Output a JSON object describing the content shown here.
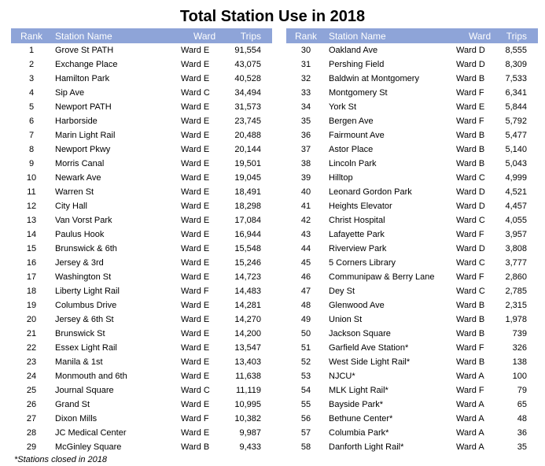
{
  "title": "Total Station Use in 2018",
  "headers": {
    "rank": "Rank",
    "name": "Station Name",
    "ward": "Ward",
    "trips": "Trips"
  },
  "left_rows": [
    {
      "rank": "1",
      "name": "Grove St PATH",
      "ward": "Ward E",
      "trips": "91,554"
    },
    {
      "rank": "2",
      "name": "Exchange Place",
      "ward": "Ward E",
      "trips": "43,075"
    },
    {
      "rank": "3",
      "name": "Hamilton Park",
      "ward": "Ward E",
      "trips": "40,528"
    },
    {
      "rank": "4",
      "name": "Sip Ave",
      "ward": "Ward C",
      "trips": "34,494"
    },
    {
      "rank": "5",
      "name": "Newport PATH",
      "ward": "Ward E",
      "trips": "31,573"
    },
    {
      "rank": "6",
      "name": "Harborside",
      "ward": "Ward E",
      "trips": "23,745"
    },
    {
      "rank": "7",
      "name": "Marin Light Rail",
      "ward": "Ward E",
      "trips": "20,488"
    },
    {
      "rank": "8",
      "name": "Newport Pkwy",
      "ward": "Ward E",
      "trips": "20,144"
    },
    {
      "rank": "9",
      "name": "Morris Canal",
      "ward": "Ward E",
      "trips": "19,501"
    },
    {
      "rank": "10",
      "name": "Newark Ave",
      "ward": "Ward E",
      "trips": "19,045"
    },
    {
      "rank": "11",
      "name": "Warren St",
      "ward": "Ward E",
      "trips": "18,491"
    },
    {
      "rank": "12",
      "name": "City Hall",
      "ward": "Ward E",
      "trips": "18,298"
    },
    {
      "rank": "13",
      "name": "Van Vorst Park",
      "ward": "Ward E",
      "trips": "17,084"
    },
    {
      "rank": "14",
      "name": "Paulus Hook",
      "ward": "Ward E",
      "trips": "16,944"
    },
    {
      "rank": "15",
      "name": "Brunswick & 6th",
      "ward": "Ward E",
      "trips": "15,548"
    },
    {
      "rank": "16",
      "name": "Jersey & 3rd",
      "ward": "Ward E",
      "trips": "15,246"
    },
    {
      "rank": "17",
      "name": "Washington St",
      "ward": "Ward E",
      "trips": "14,723"
    },
    {
      "rank": "18",
      "name": "Liberty Light Rail",
      "ward": "Ward F",
      "trips": "14,483"
    },
    {
      "rank": "19",
      "name": "Columbus Drive",
      "ward": "Ward E",
      "trips": "14,281"
    },
    {
      "rank": "20",
      "name": "Jersey & 6th St",
      "ward": "Ward E",
      "trips": "14,270"
    },
    {
      "rank": "21",
      "name": "Brunswick St",
      "ward": "Ward E",
      "trips": "14,200"
    },
    {
      "rank": "22",
      "name": "Essex Light Rail",
      "ward": "Ward E",
      "trips": "13,547"
    },
    {
      "rank": "23",
      "name": "Manila & 1st",
      "ward": "Ward E",
      "trips": "13,403"
    },
    {
      "rank": "24",
      "name": "Monmouth and 6th",
      "ward": "Ward E",
      "trips": "11,638"
    },
    {
      "rank": "25",
      "name": "Journal Square",
      "ward": "Ward C",
      "trips": "11,119"
    },
    {
      "rank": "26",
      "name": "Grand St",
      "ward": "Ward E",
      "trips": "10,995"
    },
    {
      "rank": "27",
      "name": "Dixon Mills",
      "ward": "Ward F",
      "trips": "10,382"
    },
    {
      "rank": "28",
      "name": "JC Medical Center",
      "ward": "Ward E",
      "trips": "9,987"
    },
    {
      "rank": "29",
      "name": "McGinley Square",
      "ward": "Ward B",
      "trips": "9,433"
    }
  ],
  "right_rows": [
    {
      "rank": "30",
      "name": "Oakland Ave",
      "ward": "Ward D",
      "trips": "8,555"
    },
    {
      "rank": "31",
      "name": "Pershing Field",
      "ward": "Ward D",
      "trips": "8,309"
    },
    {
      "rank": "32",
      "name": "Baldwin at Montgomery",
      "ward": "Ward B",
      "trips": "7,533"
    },
    {
      "rank": "33",
      "name": "Montgomery St",
      "ward": "Ward F",
      "trips": "6,341"
    },
    {
      "rank": "34",
      "name": "York St",
      "ward": "Ward E",
      "trips": "5,844"
    },
    {
      "rank": "35",
      "name": "Bergen Ave",
      "ward": "Ward F",
      "trips": "5,792"
    },
    {
      "rank": "36",
      "name": "Fairmount Ave",
      "ward": "Ward B",
      "trips": "5,477"
    },
    {
      "rank": "37",
      "name": "Astor Place",
      "ward": "Ward B",
      "trips": "5,140"
    },
    {
      "rank": "38",
      "name": "Lincoln Park",
      "ward": "Ward B",
      "trips": "5,043"
    },
    {
      "rank": "39",
      "name": "Hilltop",
      "ward": "Ward C",
      "trips": "4,999"
    },
    {
      "rank": "40",
      "name": "Leonard Gordon Park",
      "ward": "Ward D",
      "trips": "4,521"
    },
    {
      "rank": "41",
      "name": "Heights Elevator",
      "ward": "Ward D",
      "trips": "4,457"
    },
    {
      "rank": "42",
      "name": "Christ Hospital",
      "ward": "Ward C",
      "trips": "4,055"
    },
    {
      "rank": "43",
      "name": "Lafayette Park",
      "ward": "Ward F",
      "trips": "3,957"
    },
    {
      "rank": "44",
      "name": "Riverview Park",
      "ward": "Ward D",
      "trips": "3,808"
    },
    {
      "rank": "45",
      "name": "5 Corners Library",
      "ward": "Ward C",
      "trips": "3,777"
    },
    {
      "rank": "46",
      "name": "Communipaw & Berry Lane",
      "ward": "Ward F",
      "trips": "2,860"
    },
    {
      "rank": "47",
      "name": "Dey St",
      "ward": "Ward C",
      "trips": "2,785"
    },
    {
      "rank": "48",
      "name": "Glenwood Ave",
      "ward": "Ward B",
      "trips": "2,315"
    },
    {
      "rank": "49",
      "name": "Union St",
      "ward": "Ward B",
      "trips": "1,978"
    },
    {
      "rank": "50",
      "name": "Jackson Square",
      "ward": "Ward B",
      "trips": "739"
    },
    {
      "rank": "51",
      "name": "Garfield Ave Station*",
      "ward": "Ward F",
      "trips": "326"
    },
    {
      "rank": "52",
      "name": "West Side Light Rail*",
      "ward": "Ward B",
      "trips": "138"
    },
    {
      "rank": "53",
      "name": "NJCU*",
      "ward": "Ward A",
      "trips": "100"
    },
    {
      "rank": "54",
      "name": "MLK Light Rail*",
      "ward": "Ward F",
      "trips": "79"
    },
    {
      "rank": "55",
      "name": "Bayside Park*",
      "ward": "Ward A",
      "trips": "65"
    },
    {
      "rank": "56",
      "name": "Bethune Center*",
      "ward": "Ward A",
      "trips": "48"
    },
    {
      "rank": "57",
      "name": "Columbia Park*",
      "ward": "Ward A",
      "trips": "36"
    },
    {
      "rank": "58",
      "name": "Danforth Light Rail*",
      "ward": "Ward A",
      "trips": "35"
    }
  ],
  "footnote": "*Stations closed in 2018"
}
